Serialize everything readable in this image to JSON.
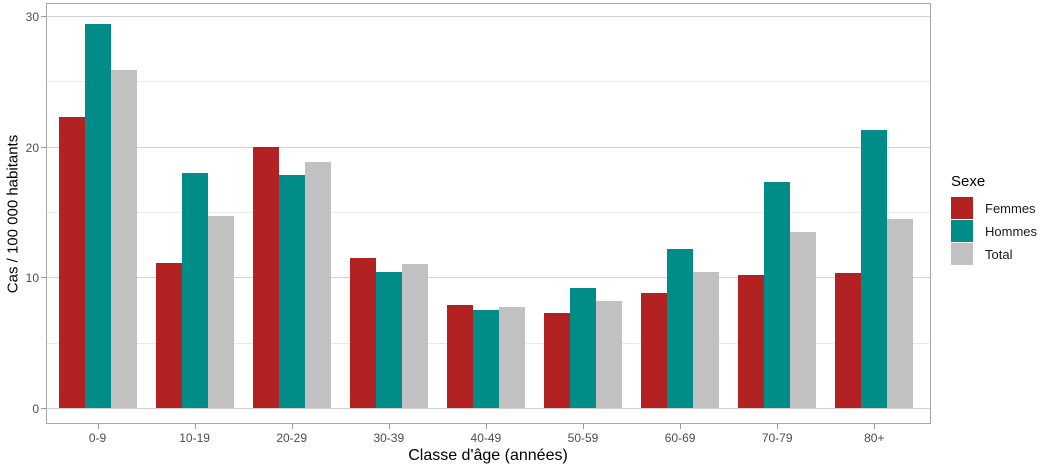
{
  "chart_data": {
    "type": "bar",
    "title": "",
    "xlabel": "Classe d'âge (années)",
    "ylabel": "Cas / 100 000 habitants",
    "legend_title": "Sexe",
    "legend_position": "right",
    "grid": true,
    "ylim": [
      0,
      30
    ],
    "yticks": [
      0,
      10,
      20,
      30
    ],
    "yminorticks": [
      5,
      15,
      25
    ],
    "categories": [
      "0-9",
      "10-19",
      "20-29",
      "30-39",
      "40-49",
      "50-59",
      "60-69",
      "70-79",
      "80+"
    ],
    "series": [
      {
        "name": "Femmes",
        "color": "#b22222",
        "values": [
          22.3,
          11.1,
          20.0,
          11.5,
          7.9,
          7.3,
          8.8,
          10.2,
          10.3
        ]
      },
      {
        "name": "Hommes",
        "color": "#008d89",
        "values": [
          29.4,
          18.0,
          17.8,
          10.4,
          7.5,
          9.2,
          12.2,
          17.3,
          21.3
        ]
      },
      {
        "name": "Total",
        "color": "#c1c1c1",
        "values": [
          25.9,
          14.7,
          18.8,
          11.0,
          7.7,
          8.2,
          10.4,
          13.5,
          14.5
        ]
      }
    ]
  }
}
